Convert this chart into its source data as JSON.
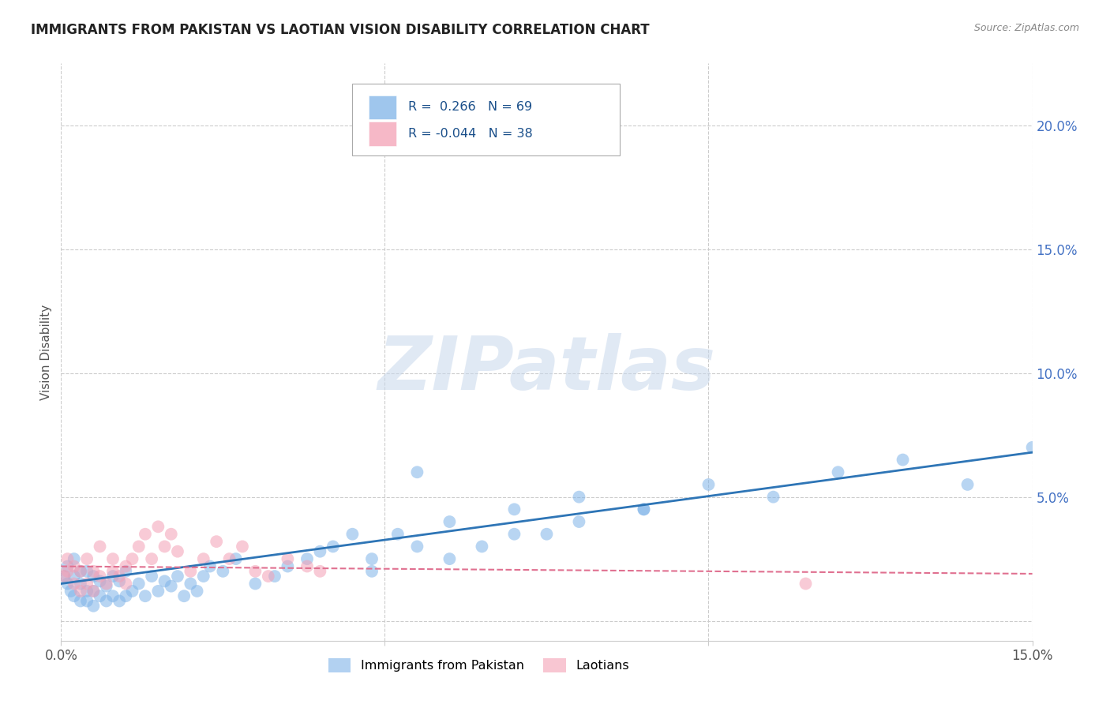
{
  "title": "IMMIGRANTS FROM PAKISTAN VS LAOTIAN VISION DISABILITY CORRELATION CHART",
  "source": "Source: ZipAtlas.com",
  "ylabel": "Vision Disability",
  "xlim": [
    0.0,
    0.15
  ],
  "ylim": [
    -0.008,
    0.225
  ],
  "background_color": "#ffffff",
  "blue_color": "#7fb3e8",
  "pink_color": "#f4a0b5",
  "blue_line_color": "#2e75b6",
  "pink_line_color": "#e07090",
  "legend_R1": "0.266",
  "legend_N1": "69",
  "legend_R2": "-0.044",
  "legend_N2": "38",
  "watermark": "ZIPatlas",
  "legend_label1": "Immigrants from Pakistan",
  "legend_label2": "Laotians",
  "blue_scatter_x": [
    0.0005,
    0.001,
    0.001,
    0.0015,
    0.002,
    0.002,
    0.002,
    0.003,
    0.003,
    0.003,
    0.004,
    0.004,
    0.004,
    0.005,
    0.005,
    0.005,
    0.006,
    0.006,
    0.007,
    0.007,
    0.008,
    0.008,
    0.009,
    0.009,
    0.01,
    0.01,
    0.011,
    0.012,
    0.013,
    0.014,
    0.015,
    0.016,
    0.017,
    0.018,
    0.019,
    0.02,
    0.021,
    0.022,
    0.023,
    0.025,
    0.027,
    0.03,
    0.033,
    0.035,
    0.038,
    0.04,
    0.042,
    0.045,
    0.048,
    0.052,
    0.055,
    0.06,
    0.065,
    0.07,
    0.075,
    0.08,
    0.09,
    0.1,
    0.11,
    0.12,
    0.13,
    0.14,
    0.15,
    0.048,
    0.055,
    0.06,
    0.07,
    0.08,
    0.09
  ],
  "blue_scatter_y": [
    0.018,
    0.015,
    0.022,
    0.012,
    0.01,
    0.018,
    0.025,
    0.008,
    0.015,
    0.02,
    0.008,
    0.012,
    0.02,
    0.006,
    0.012,
    0.018,
    0.01,
    0.016,
    0.008,
    0.014,
    0.01,
    0.018,
    0.008,
    0.016,
    0.01,
    0.02,
    0.012,
    0.015,
    0.01,
    0.018,
    0.012,
    0.016,
    0.014,
    0.018,
    0.01,
    0.015,
    0.012,
    0.018,
    0.022,
    0.02,
    0.025,
    0.015,
    0.018,
    0.022,
    0.025,
    0.028,
    0.03,
    0.035,
    0.025,
    0.035,
    0.06,
    0.04,
    0.03,
    0.045,
    0.035,
    0.05,
    0.045,
    0.055,
    0.05,
    0.06,
    0.065,
    0.055,
    0.07,
    0.02,
    0.03,
    0.025,
    0.035,
    0.04,
    0.045
  ],
  "pink_scatter_x": [
    0.0005,
    0.001,
    0.001,
    0.002,
    0.002,
    0.003,
    0.003,
    0.004,
    0.004,
    0.005,
    0.005,
    0.006,
    0.006,
    0.007,
    0.008,
    0.008,
    0.009,
    0.01,
    0.01,
    0.011,
    0.012,
    0.013,
    0.014,
    0.015,
    0.016,
    0.017,
    0.018,
    0.02,
    0.022,
    0.024,
    0.026,
    0.028,
    0.03,
    0.032,
    0.035,
    0.038,
    0.04,
    0.115
  ],
  "pink_scatter_y": [
    0.018,
    0.02,
    0.025,
    0.015,
    0.022,
    0.012,
    0.02,
    0.015,
    0.025,
    0.012,
    0.02,
    0.018,
    0.03,
    0.015,
    0.02,
    0.025,
    0.018,
    0.015,
    0.022,
    0.025,
    0.03,
    0.035,
    0.025,
    0.038,
    0.03,
    0.035,
    0.028,
    0.02,
    0.025,
    0.032,
    0.025,
    0.03,
    0.02,
    0.018,
    0.025,
    0.022,
    0.02,
    0.015
  ],
  "blue_line_x": [
    0.0,
    0.15
  ],
  "blue_line_y": [
    0.015,
    0.068
  ],
  "pink_line_x": [
    0.0,
    0.15
  ],
  "pink_line_y": [
    0.022,
    0.019
  ],
  "ytick_vals": [
    0.0,
    0.05,
    0.1,
    0.15,
    0.2
  ],
  "ytick_labels_right": [
    "",
    "5.0%",
    "10.0%",
    "15.0%",
    "20.0%"
  ],
  "xtick_vals": [
    0.0,
    0.05,
    0.1,
    0.15
  ],
  "xtick_labels": [
    "0.0%",
    "",
    "",
    "15.0%"
  ],
  "grid_color": "#cccccc",
  "title_fontsize": 12,
  "axis_label_color": "#555555",
  "right_axis_color": "#4472c4",
  "source_color": "#888888"
}
